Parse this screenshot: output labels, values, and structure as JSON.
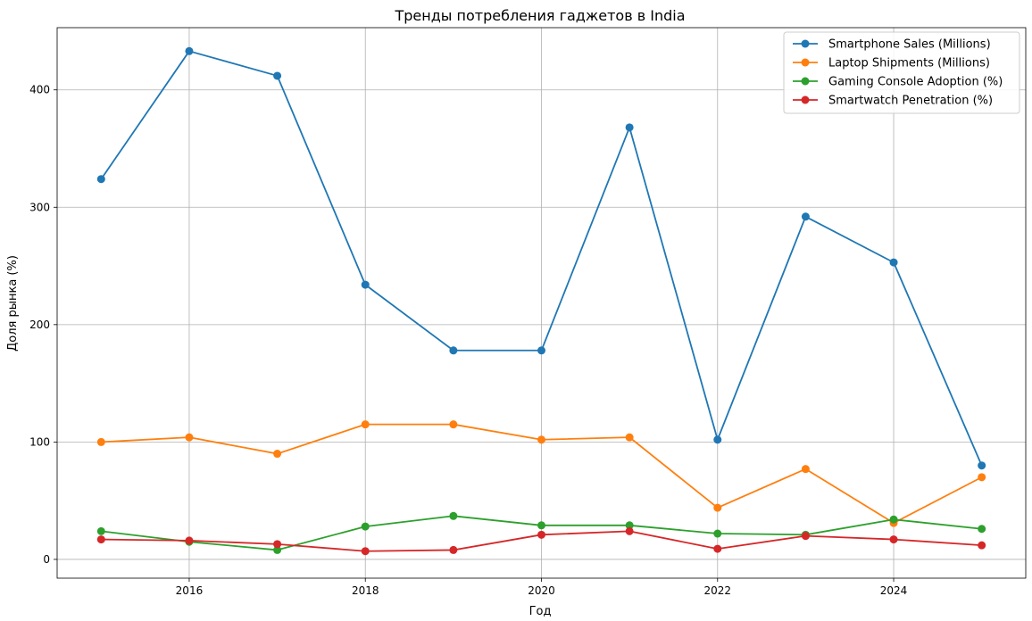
{
  "chart_data": {
    "type": "line",
    "title": "Тренды потребления гаджетов в India",
    "xlabel": "Год",
    "ylabel": "Доля рынка (%)",
    "x": [
      2015,
      2016,
      2017,
      2018,
      2019,
      2020,
      2021,
      2022,
      2023,
      2024,
      2025
    ],
    "xlim": [
      2014.5,
      2025.5
    ],
    "ylim": [
      -16,
      453
    ],
    "xticks": [
      2016,
      2018,
      2020,
      2022,
      2024
    ],
    "yticks": [
      0,
      100,
      200,
      300,
      400
    ],
    "grid": true,
    "legend_position": "top-right",
    "series": [
      {
        "name": "Smartphone Sales (Millions)",
        "color": "#1f77b4",
        "values": [
          324,
          433,
          412,
          234,
          178,
          178,
          368,
          102,
          292,
          253,
          80
        ]
      },
      {
        "name": "Laptop Shipments (Millions)",
        "color": "#ff7f0e",
        "values": [
          100,
          104,
          90,
          115,
          115,
          102,
          104,
          44,
          77,
          31,
          70
        ]
      },
      {
        "name": "Gaming Console Adoption (%)",
        "color": "#2ca02c",
        "values": [
          24,
          15,
          8,
          28,
          37,
          29,
          29,
          22,
          21,
          34,
          26
        ]
      },
      {
        "name": "Smartwatch Penetration (%)",
        "color": "#d62728",
        "values": [
          17,
          16,
          13,
          7,
          8,
          21,
          24,
          9,
          20,
          17,
          12
        ]
      }
    ]
  }
}
